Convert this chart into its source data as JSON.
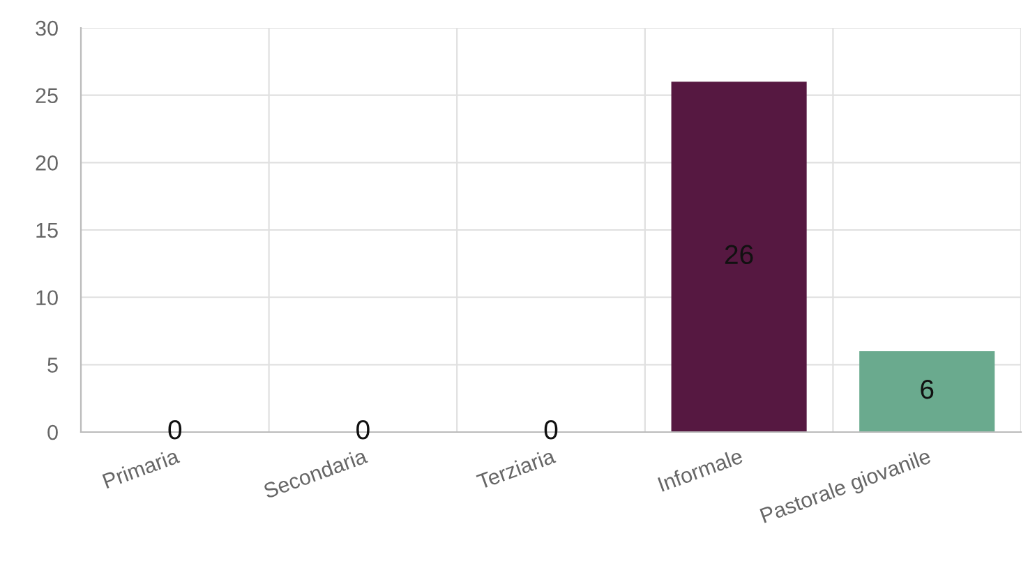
{
  "chart_data": {
    "type": "bar",
    "categories": [
      "Primaria",
      "Secondaria",
      "Terziaria",
      "Informale",
      "Pastorale giovanile"
    ],
    "values": [
      0,
      0,
      0,
      26,
      6
    ],
    "colors": [
      null,
      null,
      null,
      "#561841",
      "#6aaa8e"
    ],
    "ylim": [
      0,
      30
    ],
    "yticks": [
      0,
      5,
      10,
      15,
      20,
      25,
      30
    ],
    "grid": true,
    "data_labels": true
  }
}
